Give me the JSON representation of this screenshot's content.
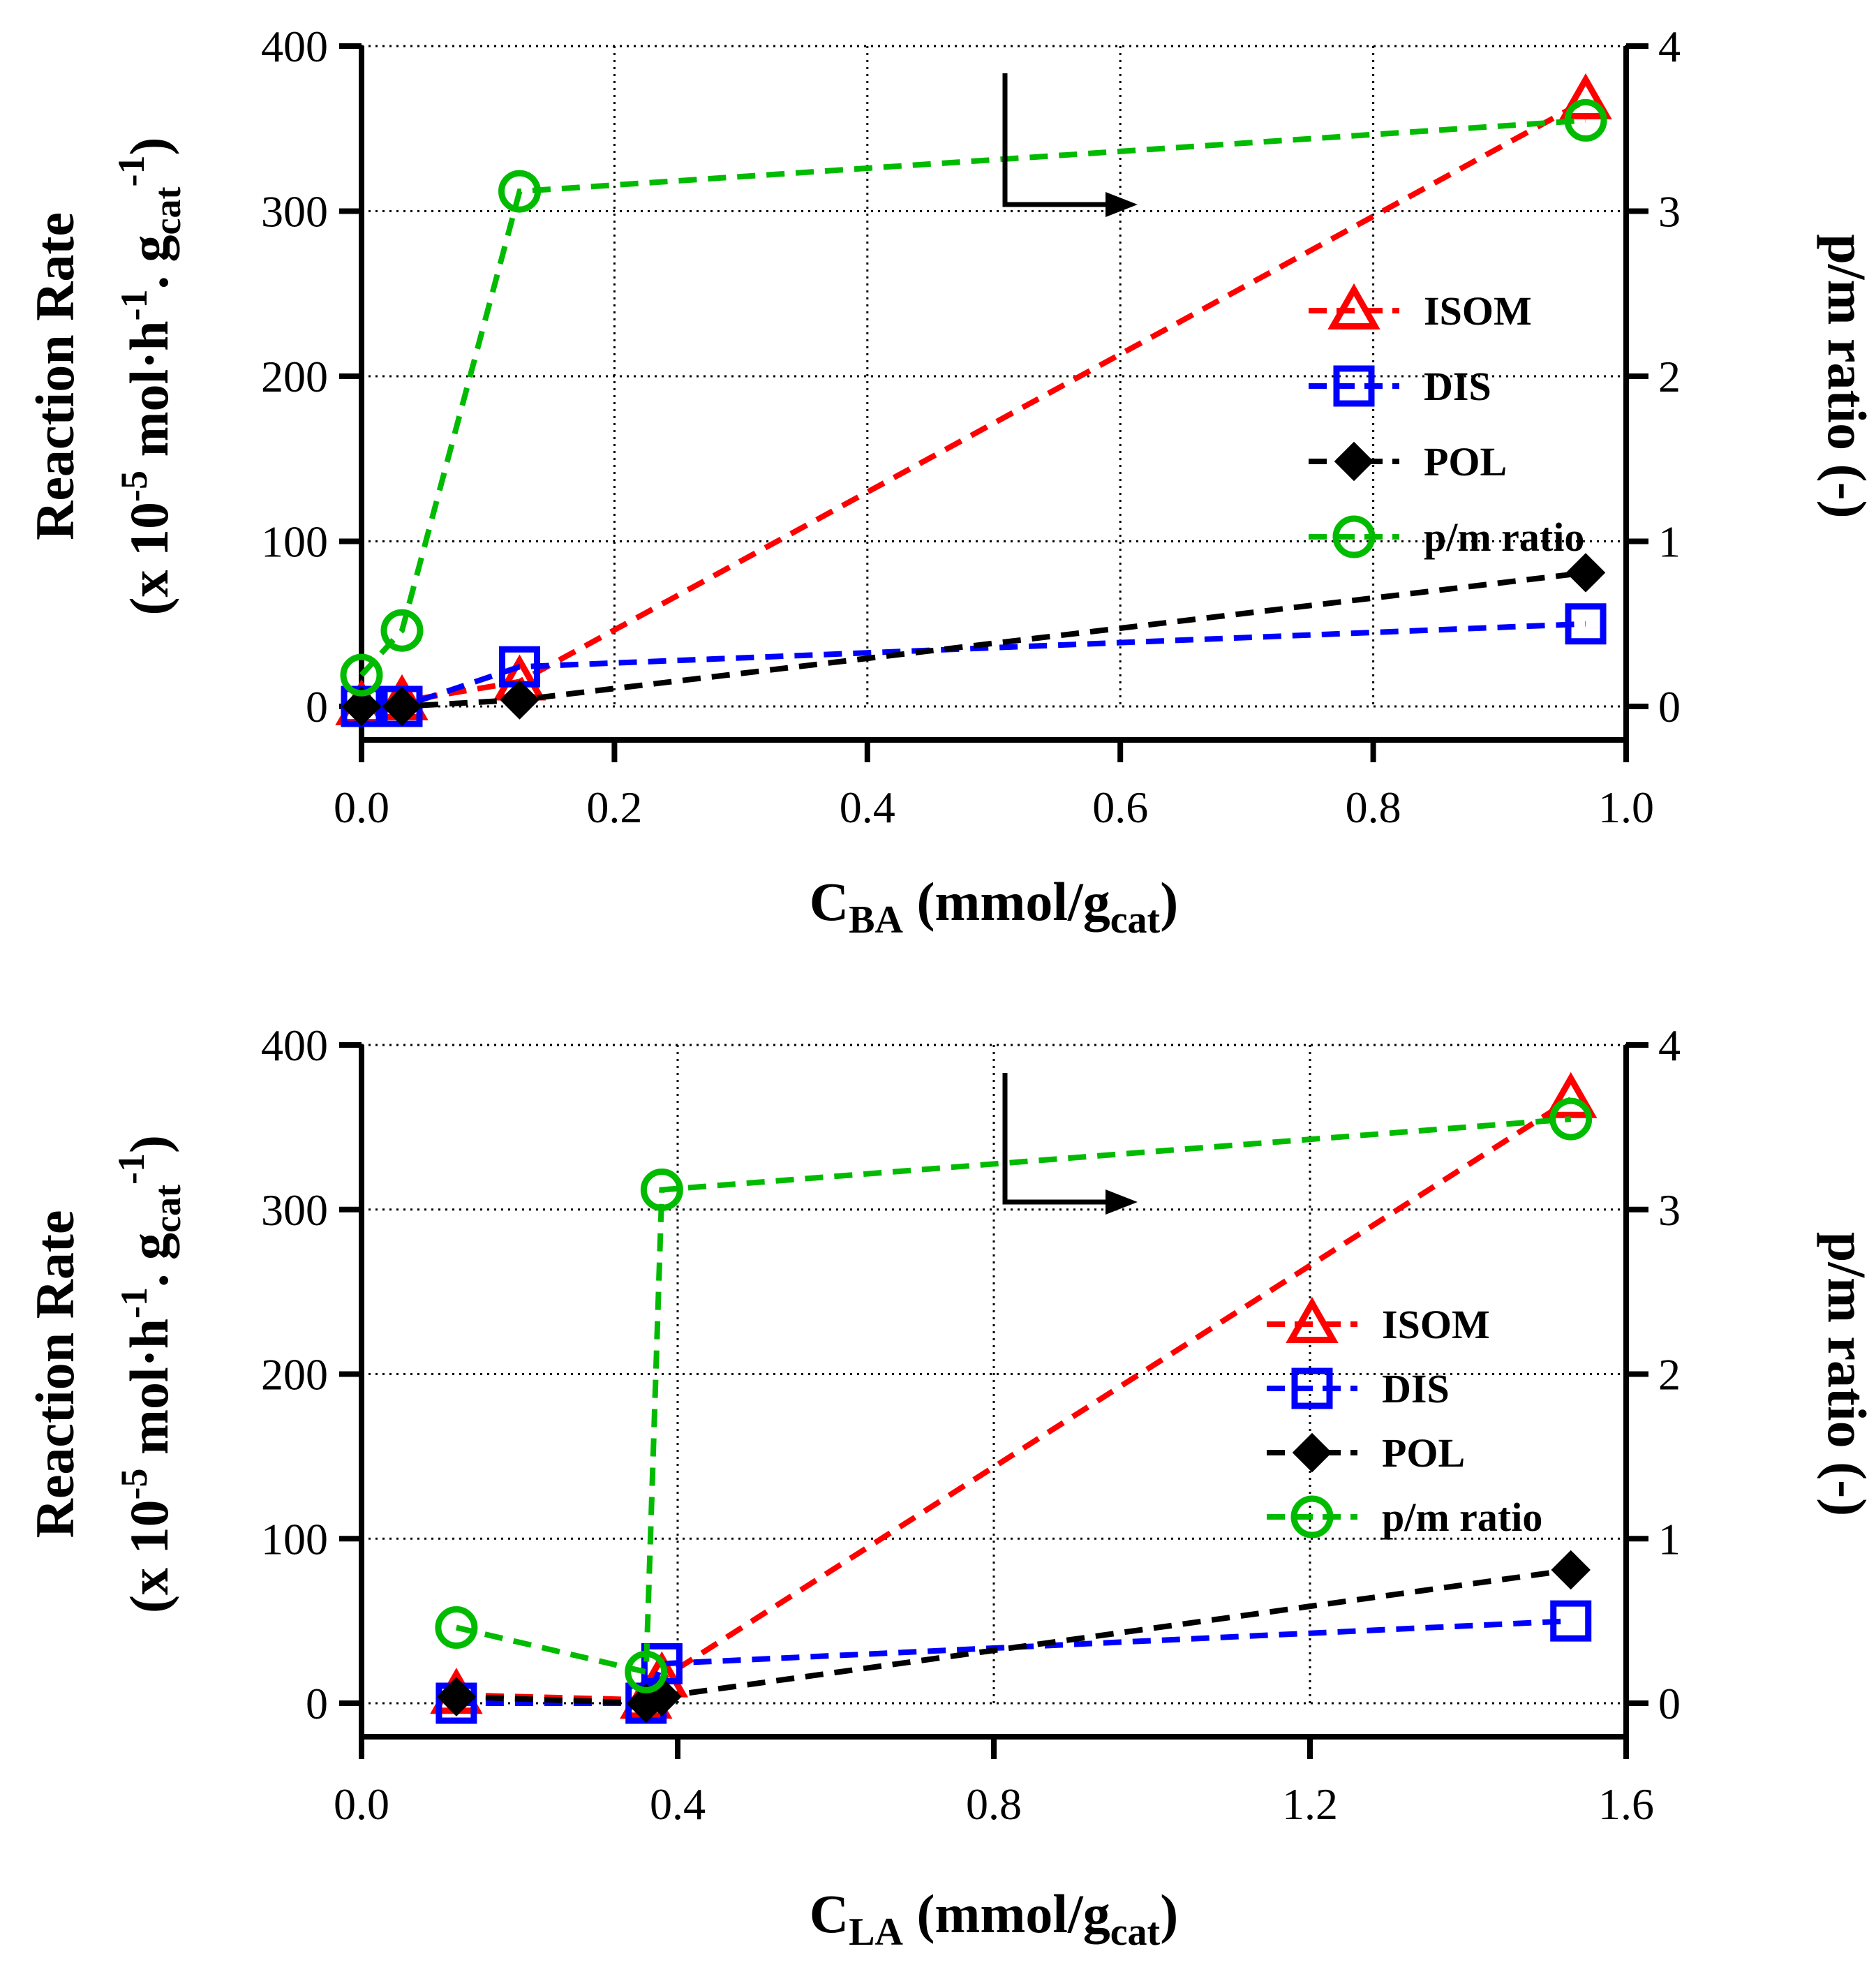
{
  "chart_data": [
    {
      "type": "line",
      "xlabel": {
        "main": "C",
        "sub": "BA",
        "unit_pre": " (mmol/g",
        "unit_sub": "cat",
        "unit_post": ")"
      },
      "ylabel_left": {
        "line1": "Reaction Rate",
        "line2": {
          "a": "(x 10",
          "sup1": "-5",
          "b": " mol·h",
          "sup2": "-1",
          "c": ". g",
          "sub": "cat",
          "sup3": "-1",
          "d": ")"
        }
      },
      "ylabel_right": "p/m ratio (-)",
      "xlim": [
        0.0,
        1.0
      ],
      "ylim_left": [
        0,
        400
      ],
      "ylim_right": [
        0,
        4
      ],
      "xticks": [
        0.0,
        0.2,
        0.4,
        0.6,
        0.8,
        1.0
      ],
      "xtick_labels": [
        "0.0",
        "0.2",
        "0.4",
        "0.6",
        "0.8",
        "1.0"
      ],
      "yticks_left": [
        0,
        100,
        200,
        300,
        400
      ],
      "ytick_labels_left": [
        "0",
        "100",
        "200",
        "300",
        "400"
      ],
      "yticks_right": [
        0,
        1,
        2,
        3,
        4
      ],
      "ytick_labels_right": [
        "0",
        "1",
        "2",
        "3",
        "4"
      ],
      "legend": [
        "ISOM",
        "DIS",
        "POL",
        "p/m ratio"
      ],
      "grid": true,
      "annotation": "arrow pointing to right axis",
      "series": [
        {
          "name": "ISOM",
          "axis": "left",
          "marker": "triangle",
          "color": "#ff0000",
          "x": [
            0.0,
            0.032,
            0.125,
            0.968
          ],
          "y": [
            0,
            3,
            15,
            367
          ]
        },
        {
          "name": "DIS",
          "axis": "left",
          "marker": "square",
          "color": "#0000ff",
          "x": [
            0.0,
            0.032,
            0.125,
            0.968
          ],
          "y": [
            0,
            0,
            24,
            50
          ]
        },
        {
          "name": "POL",
          "axis": "left",
          "marker": "diamond",
          "color": "#000000",
          "x": [
            0.0,
            0.032,
            0.125,
            0.968
          ],
          "y": [
            0,
            0,
            4,
            81
          ]
        },
        {
          "name": "p/m ratio",
          "axis": "right",
          "marker": "circle",
          "color": "#00bb00",
          "x": [
            0.0,
            0.032,
            0.125,
            0.968
          ],
          "y": [
            0.19,
            0.46,
            3.12,
            3.55
          ]
        }
      ]
    },
    {
      "type": "line",
      "xlabel": {
        "main": "C",
        "sub": "LA",
        "unit_pre": " (mmol/g",
        "unit_sub": "cat",
        "unit_post": ")"
      },
      "ylabel_left": {
        "line1": "Reaction Rate",
        "line2": {
          "a": "(x 10",
          "sup1": "-5",
          "b": " mol·h",
          "sup2": "-1",
          "c": ". g",
          "sub": "cat",
          "sup3": "-1",
          "d": ")"
        }
      },
      "ylabel_right": "p/m ratio (-)",
      "xlim": [
        0.0,
        1.6
      ],
      "ylim_left": [
        0,
        400
      ],
      "ylim_right": [
        0,
        4
      ],
      "xticks": [
        0.0,
        0.4,
        0.8,
        1.2,
        1.6
      ],
      "xtick_labels": [
        "0.0",
        "0.4",
        "0.8",
        "1.2",
        "1.6"
      ],
      "yticks_left": [
        0,
        100,
        200,
        300,
        400
      ],
      "ytick_labels_left": [
        "0",
        "100",
        "200",
        "300",
        "400"
      ],
      "yticks_right": [
        0,
        1,
        2,
        3,
        4
      ],
      "ytick_labels_right": [
        "0",
        "1",
        "2",
        "3",
        "4"
      ],
      "legend": [
        "ISOM",
        "DIS",
        "POL",
        "p/m ratio"
      ],
      "grid": true,
      "annotation": "arrow pointing to right axis",
      "series": [
        {
          "name": "ISOM",
          "axis": "left",
          "marker": "triangle",
          "color": "#ff0000",
          "x": [
            0.12,
            0.36,
            0.38,
            1.53
          ],
          "y": [
            5,
            2,
            15,
            367
          ]
        },
        {
          "name": "DIS",
          "axis": "left",
          "marker": "square",
          "color": "#0000ff",
          "x": [
            0.12,
            0.36,
            0.38,
            1.53
          ],
          "y": [
            0,
            0,
            24,
            50
          ]
        },
        {
          "name": "POL",
          "axis": "left",
          "marker": "diamond",
          "color": "#000000",
          "x": [
            0.12,
            0.36,
            0.38,
            1.53
          ],
          "y": [
            4,
            0,
            4,
            81
          ]
        },
        {
          "name": "p/m ratio",
          "axis": "right",
          "marker": "circle",
          "color": "#00bb00",
          "x": [
            0.12,
            0.36,
            0.38,
            1.53
          ],
          "y": [
            0.46,
            0.19,
            3.12,
            3.55
          ]
        }
      ]
    }
  ]
}
